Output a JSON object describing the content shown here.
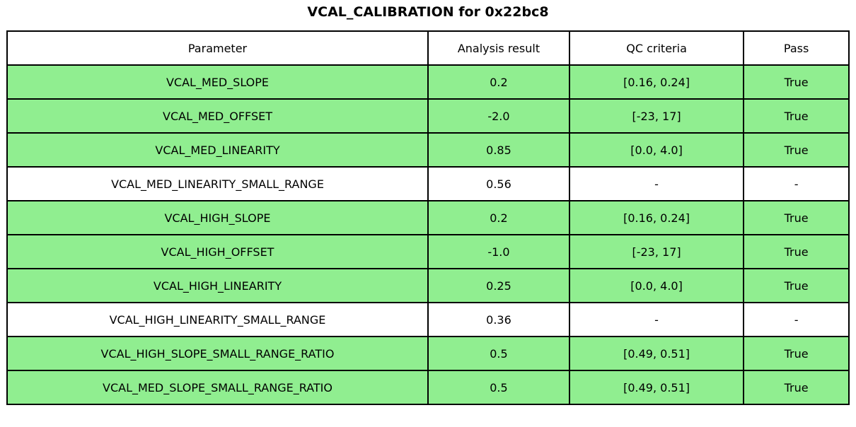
{
  "title": "VCAL_CALIBRATION for 0x22bc8",
  "colors": {
    "pass_row": "#90ee90",
    "neutral_row": "#ffffff",
    "border": "#000000",
    "text": "#000000"
  },
  "chart_data": {
    "type": "table",
    "title": "VCAL_CALIBRATION for 0x22bc8",
    "headers": [
      "Parameter",
      "Analysis result",
      "QC criteria",
      "Pass"
    ],
    "rows": [
      {
        "parameter": "VCAL_MED_SLOPE",
        "result": "0.2",
        "qc": "[0.16, 0.24]",
        "pass": "True",
        "status": "pass"
      },
      {
        "parameter": "VCAL_MED_OFFSET",
        "result": "-2.0",
        "qc": "[-23, 17]",
        "pass": "True",
        "status": "pass"
      },
      {
        "parameter": "VCAL_MED_LINEARITY",
        "result": "0.85",
        "qc": "[0.0, 4.0]",
        "pass": "True",
        "status": "pass"
      },
      {
        "parameter": "VCAL_MED_LINEARITY_SMALL_RANGE",
        "result": "0.56",
        "qc": "-",
        "pass": "-",
        "status": "neutral"
      },
      {
        "parameter": "VCAL_HIGH_SLOPE",
        "result": "0.2",
        "qc": "[0.16, 0.24]",
        "pass": "True",
        "status": "pass"
      },
      {
        "parameter": "VCAL_HIGH_OFFSET",
        "result": "-1.0",
        "qc": "[-23, 17]",
        "pass": "True",
        "status": "pass"
      },
      {
        "parameter": "VCAL_HIGH_LINEARITY",
        "result": "0.25",
        "qc": "[0.0, 4.0]",
        "pass": "True",
        "status": "pass"
      },
      {
        "parameter": "VCAL_HIGH_LINEARITY_SMALL_RANGE",
        "result": "0.36",
        "qc": "-",
        "pass": "-",
        "status": "neutral"
      },
      {
        "parameter": "VCAL_HIGH_SLOPE_SMALL_RANGE_RATIO",
        "result": "0.5",
        "qc": "[0.49, 0.51]",
        "pass": "True",
        "status": "pass"
      },
      {
        "parameter": "VCAL_MED_SLOPE_SMALL_RANGE_RATIO",
        "result": "0.5",
        "qc": "[0.49, 0.51]",
        "pass": "True",
        "status": "pass"
      }
    ]
  }
}
